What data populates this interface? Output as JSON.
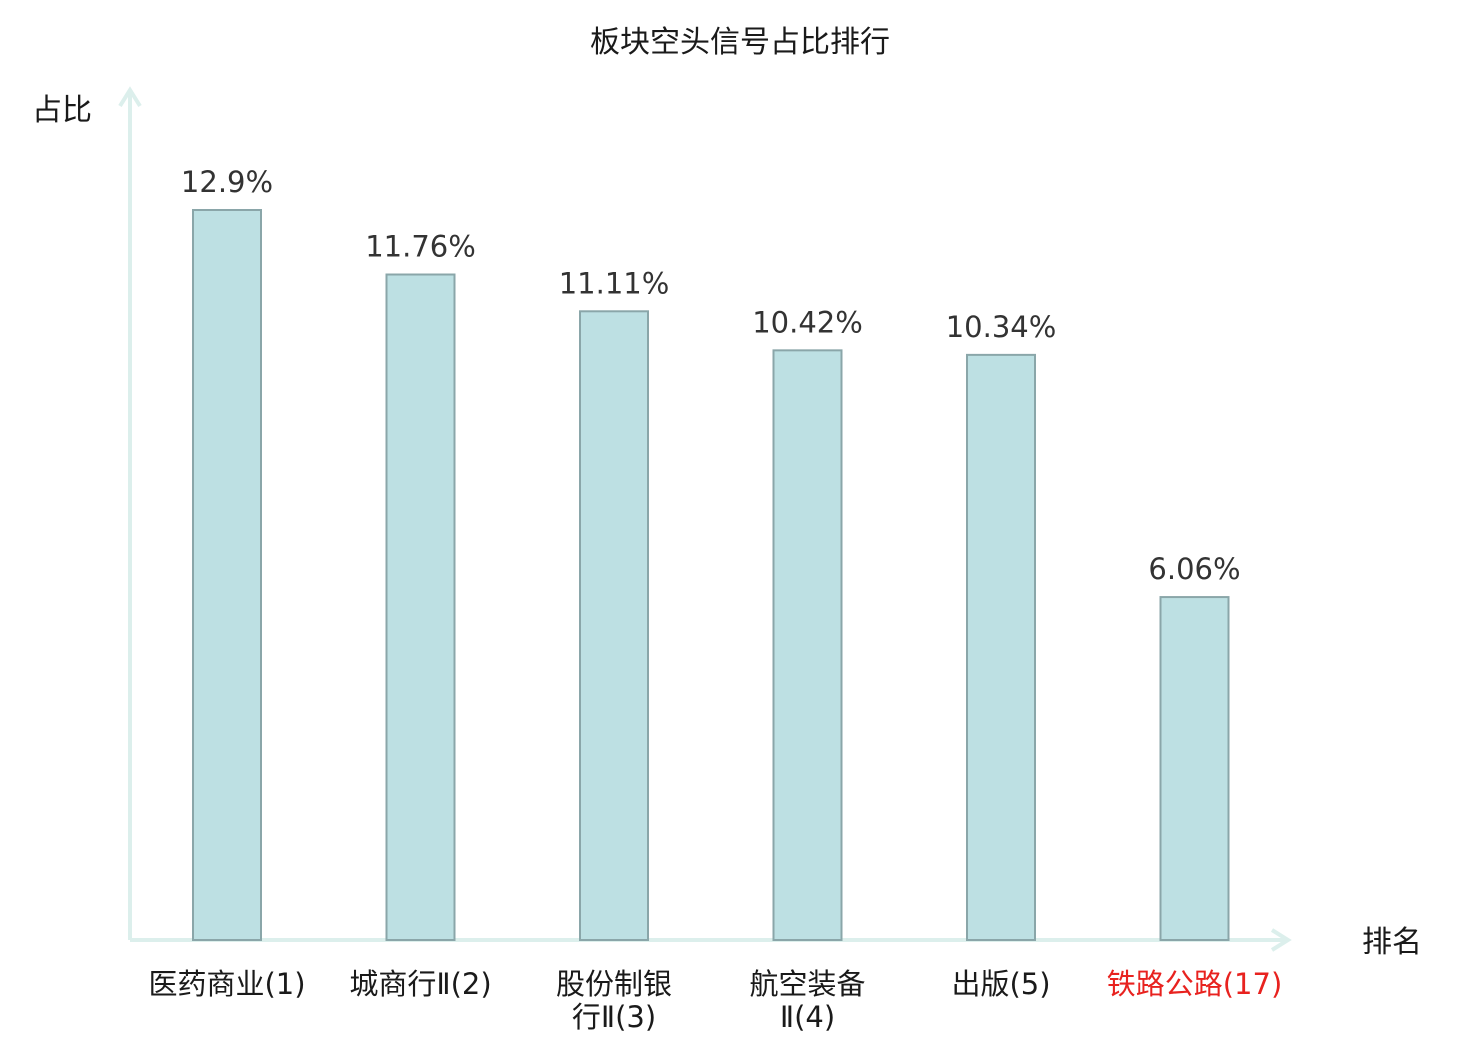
{
  "chart_data": {
    "type": "bar",
    "title": "板块空头信号占比排行",
    "ylabel": "占比",
    "xlabel": "排名",
    "categories": [
      [
        "医药商业(1)"
      ],
      [
        "城商行Ⅱ(2)"
      ],
      [
        "股份制银",
        "行Ⅱ(3)"
      ],
      [
        "航空装备",
        "Ⅱ(4)"
      ],
      [
        "出版(5)"
      ],
      [
        "铁路公路(17)"
      ]
    ],
    "values": [
      12.9,
      11.76,
      11.11,
      10.42,
      10.34,
      6.06
    ],
    "value_labels": [
      "12.9%",
      "11.76%",
      "11.11%",
      "10.42%",
      "10.34%",
      "6.06%"
    ],
    "highlight_index": 5,
    "ylim": [
      0,
      14.2
    ],
    "grid": false,
    "colors": {
      "bar_fill": "#bde0e3",
      "bar_stroke": "#8aa6a9",
      "axis": "#dcefec",
      "highlight_text": "#e8221f"
    }
  }
}
